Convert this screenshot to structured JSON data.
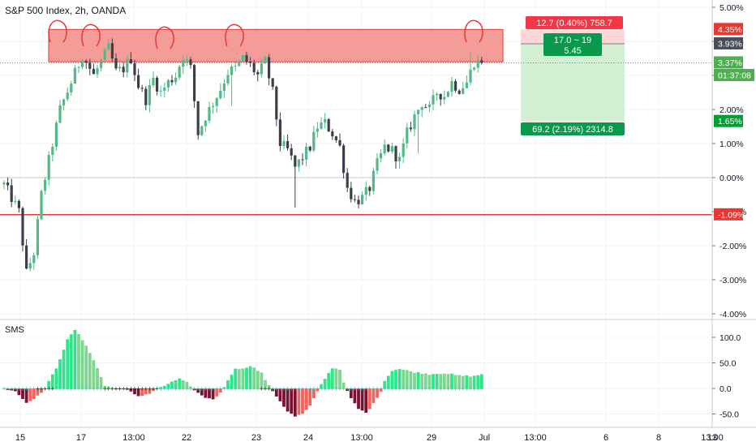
{
  "title": "S&P 500 Index, 2h, OANDA",
  "indicator_title": "SMS",
  "colors": {
    "up": "#53b987",
    "down": "#3b3f4a",
    "zone_fill": "#f28b86",
    "zone_stroke": "#e53935",
    "support_line": "#e53935",
    "last_price_line": "#4caf50",
    "profit_fill": "#d3f0d2",
    "loss_fill": "#fbd8d7",
    "hist_up_strong": "#2ee58a",
    "hist_up_weak": "#7fd691",
    "hist_down_strong": "#7a1130",
    "hist_down_weak": "#f0635f",
    "signal_line": "#26c6da"
  },
  "chart_data": [
    {
      "type": "candlestick",
      "ylabel": "%",
      "ylim": [
        -4.0,
        5.2
      ],
      "y_ticks": [
        "5.00%",
        "4.00%",
        "3.00%",
        "2.00%",
        "1.00%",
        "0.00%",
        "-1.00%",
        "-2.00%",
        "-3.00%",
        "-4.00%"
      ],
      "x_ticks": [
        "15",
        "17",
        "13:00",
        "22",
        "23",
        "24",
        "13:00",
        "29",
        "Jul",
        "13:00",
        "6",
        "8",
        "13:00",
        "13"
      ],
      "close_path": [
        [
          -0.2,
          0
        ],
        [
          -1.0,
          4
        ],
        [
          -2.8,
          6
        ],
        [
          -2.2,
          8
        ],
        [
          -0.5,
          10
        ],
        [
          1.0,
          13
        ],
        [
          2.0,
          15
        ],
        [
          2.8,
          18
        ],
        [
          3.6,
          21
        ],
        [
          3.0,
          24
        ],
        [
          3.4,
          26
        ],
        [
          3.8,
          28
        ],
        [
          3.1,
          30
        ],
        [
          3.2,
          32
        ],
        [
          3.5,
          34
        ],
        [
          2.7,
          36
        ],
        [
          2.3,
          38
        ],
        [
          2.9,
          40
        ],
        [
          2.5,
          42
        ],
        [
          2.8,
          44
        ],
        [
          3.0,
          46
        ],
        [
          3.6,
          48
        ],
        [
          3.2,
          50
        ],
        [
          1.3,
          52
        ],
        [
          1.8,
          54
        ],
        [
          2.2,
          56
        ],
        [
          2.6,
          58
        ],
        [
          3.1,
          60
        ],
        [
          3.2,
          62
        ],
        [
          3.5,
          64
        ],
        [
          3.3,
          66
        ],
        [
          3.0,
          68
        ],
        [
          3.4,
          70
        ],
        [
          2.5,
          72
        ],
        [
          1.0,
          74
        ],
        [
          0.8,
          76
        ],
        [
          0.3,
          78
        ],
        [
          0.6,
          80
        ],
        [
          0.9,
          82
        ],
        [
          1.5,
          84
        ],
        [
          1.6,
          86
        ],
        [
          1.3,
          88
        ],
        [
          0.9,
          90
        ],
        [
          -0.3,
          92
        ],
        [
          -0.7,
          94
        ],
        [
          -0.6,
          96
        ],
        [
          -0.3,
          98
        ],
        [
          0.4,
          100
        ],
        [
          0.9,
          102
        ],
        [
          0.8,
          104
        ],
        [
          0.5,
          106
        ],
        [
          1.3,
          108
        ],
        [
          1.8,
          110
        ],
        [
          2.2,
          112
        ],
        [
          2.0,
          114
        ],
        [
          2.5,
          116
        ],
        [
          2.4,
          118
        ],
        [
          2.8,
          120
        ],
        [
          2.6,
          122
        ],
        [
          2.8,
          124
        ],
        [
          3.4,
          126
        ],
        [
          3.35,
          128
        ]
      ],
      "resistance_zone": [
        3.4,
        4.35
      ],
      "support_level": -1.09,
      "last_value": 3.37,
      "axis_labels": [
        {
          "text": "4.35%",
          "value": 4.35,
          "color": "#e53935"
        },
        {
          "text": "3.93%",
          "value": 3.93,
          "color": "#4a4e58"
        },
        {
          "text": "3.37%",
          "value": 3.37,
          "color": "#4caf50"
        },
        {
          "text": "01:37:08",
          "value": 3.0,
          "color": "#4caf50"
        },
        {
          "text": "1.65%",
          "value": 1.65,
          "color": "#00a033"
        },
        {
          "text": "-1.09%",
          "value": -1.09,
          "color": "#e53935"
        }
      ],
      "position_tool": {
        "entry": 3.93,
        "stop": 4.35,
        "target": 1.65,
        "stop_label": "12.7 (0.40%) 758.7",
        "ratio_label": "17.0 ~ 19",
        "ratio_value": "5.45",
        "target_label": "69.2 (2.19%) 2314.8"
      }
    },
    {
      "type": "bar",
      "title": "SMS",
      "ylim": [
        -65,
        125
      ],
      "y_ticks": [
        "100.0",
        "50.0",
        "0.0",
        "-50.0"
      ],
      "hist_path": [
        [
          0,
          0
        ],
        [
          3,
          -5
        ],
        [
          6,
          -28
        ],
        [
          9,
          -15
        ],
        [
          11,
          0
        ],
        [
          14,
          40
        ],
        [
          17,
          95
        ],
        [
          19,
          115
        ],
        [
          22,
          85
        ],
        [
          25,
          40
        ],
        [
          27,
          5
        ],
        [
          30,
          0
        ],
        [
          33,
          -3
        ],
        [
          36,
          -15
        ],
        [
          39,
          -10
        ],
        [
          41,
          0
        ],
        [
          44,
          8
        ],
        [
          47,
          20
        ],
        [
          49,
          12
        ],
        [
          51,
          -5
        ],
        [
          53,
          -15
        ],
        [
          56,
          -22
        ],
        [
          58,
          -8
        ],
        [
          60,
          15
        ],
        [
          62,
          40
        ],
        [
          64,
          38
        ],
        [
          66,
          45
        ],
        [
          69,
          30
        ],
        [
          71,
          5
        ],
        [
          73,
          -15
        ],
        [
          76,
          -45
        ],
        [
          78,
          -55
        ],
        [
          80,
          -50
        ],
        [
          82,
          -35
        ],
        [
          84,
          -5
        ],
        [
          86,
          20
        ],
        [
          88,
          40
        ],
        [
          90,
          38
        ],
        [
          91,
          10
        ],
        [
          93,
          -20
        ],
        [
          95,
          -40
        ],
        [
          97,
          -48
        ],
        [
          99,
          -30
        ],
        [
          101,
          -5
        ],
        [
          102,
          15
        ],
        [
          104,
          35
        ],
        [
          106,
          38
        ],
        [
          110,
          32
        ],
        [
          114,
          28
        ],
        [
          118,
          30
        ],
        [
          122,
          25
        ],
        [
          126,
          24
        ],
        [
          128,
          28
        ]
      ]
    }
  ]
}
